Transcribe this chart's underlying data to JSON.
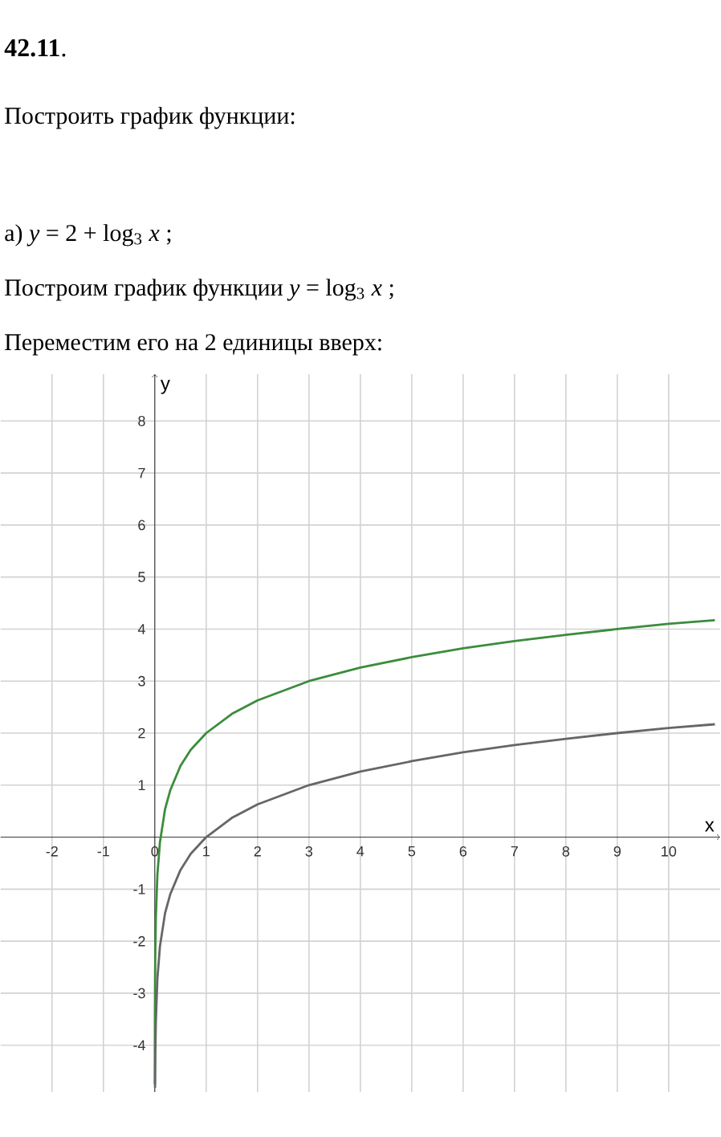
{
  "chart_data": {
    "type": "line",
    "title": "**42.11**.",
    "subtitle": "Построить график функции:",
    "annotations": [
      "а) *y* = 2 + log$_{3}$ *x* ;",
      "Построим график функции *y* = log$_{3}$ *x* ;",
      "Переместим его на 2 единицы вверх:"
    ],
    "xlabel": "x",
    "ylabel": "y",
    "xlim": [
      -3,
      11
    ],
    "ylim": [
      -4.9,
      8.9
    ],
    "xticks": [
      -2,
      -1,
      0,
      1,
      2,
      3,
      4,
      5,
      6,
      7,
      8,
      9,
      10
    ],
    "yticks": [
      -4,
      -3,
      -2,
      -1,
      1,
      2,
      3,
      4,
      5,
      6,
      7,
      8
    ],
    "grid": true,
    "series": [
      {
        "color": "#3c8c3c",
        "x": [
          0.0006,
          0.001,
          0.002,
          0.005,
          0.01,
          0.02,
          0.05,
          0.1,
          0.2,
          0.3,
          0.5,
          0.7,
          1,
          1.5,
          2,
          3,
          4,
          5,
          6,
          7,
          8,
          9,
          10,
          10.9
        ],
        "values": [
          -4.75,
          -4.29,
          -3.66,
          -2.82,
          -2.19,
          -1.56,
          -0.73,
          -0.1,
          0.54,
          0.9,
          1.37,
          1.68,
          2,
          2.37,
          2.63,
          3,
          3.26,
          3.46,
          3.63,
          3.77,
          3.89,
          4,
          4.1,
          4.17
        ]
      },
      {
        "color": "#666666",
        "x": [
          0.005,
          0.01,
          0.02,
          0.05,
          0.1,
          0.2,
          0.3,
          0.5,
          0.7,
          1,
          1.5,
          2,
          3,
          4,
          5,
          6,
          7,
          8,
          9,
          10,
          10.9
        ],
        "values": [
          -4.82,
          -4.19,
          -3.56,
          -2.73,
          -2.1,
          -1.46,
          -1.1,
          -0.63,
          -0.32,
          0,
          0.37,
          0.63,
          1,
          1.26,
          1.46,
          1.63,
          1.77,
          1.89,
          2,
          2.1,
          2.17
        ]
      }
    ]
  }
}
